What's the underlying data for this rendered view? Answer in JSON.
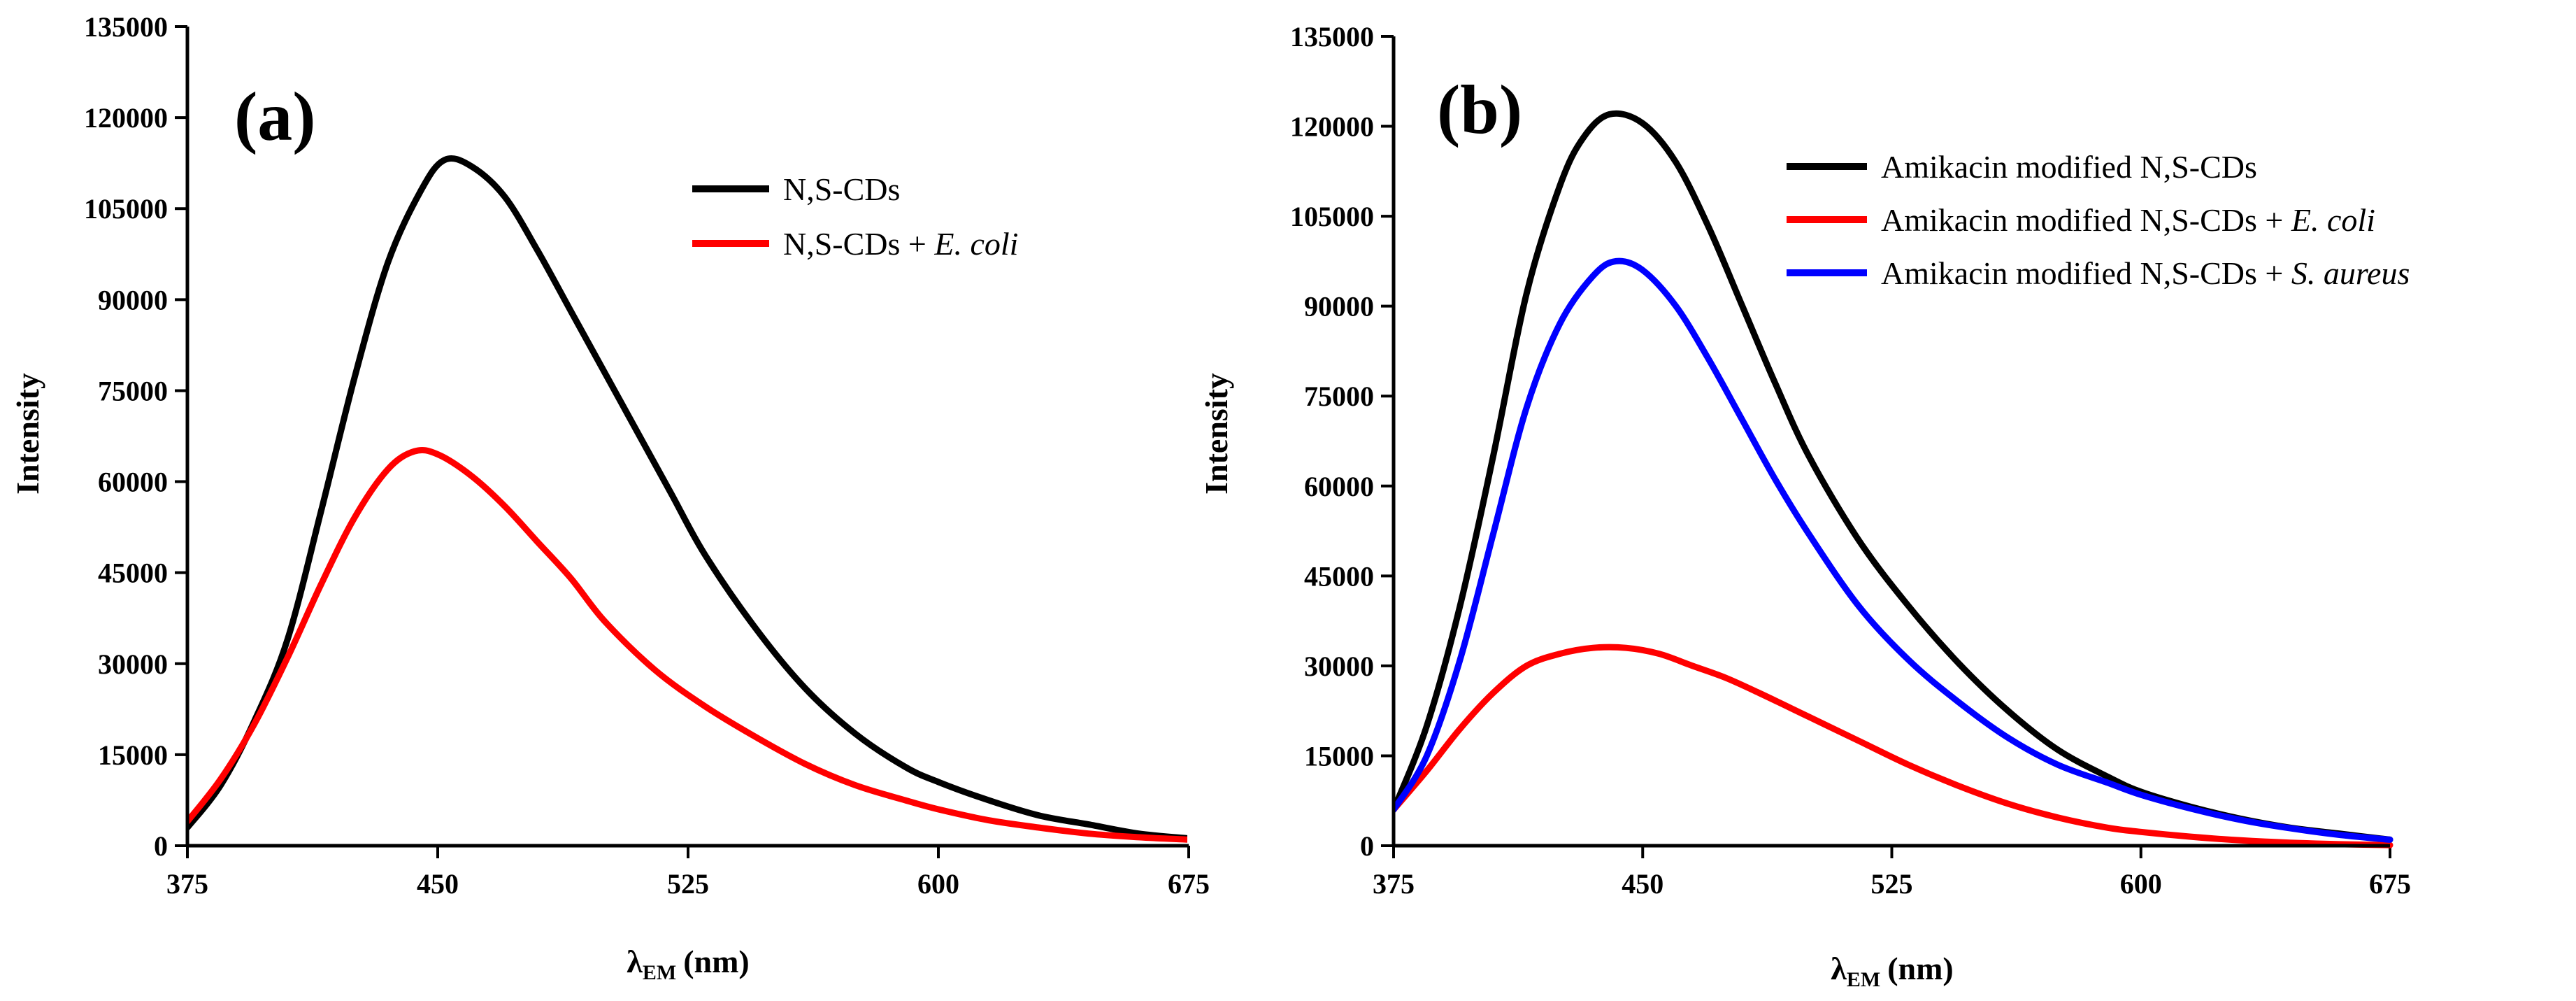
{
  "chart_data": [
    {
      "type": "line",
      "panel_label": "(a)",
      "xlabel_main": "λ",
      "xlabel_sub": "EM",
      "xlabel_unit": "(nm)",
      "ylabel": "Intensity",
      "xlim": [
        375,
        675
      ],
      "ylim": [
        0,
        135000
      ],
      "xticks": [
        375,
        450,
        525,
        600,
        675
      ],
      "yticks": [
        0,
        15000,
        30000,
        45000,
        60000,
        75000,
        90000,
        105000,
        120000,
        135000
      ],
      "legend_position": "top-right",
      "series": [
        {
          "name": "N,S-CDs",
          "name_plain": "N,S-CDs",
          "name_italic": "",
          "color": "#000000",
          "x": [
            375,
            385,
            395,
            405,
            415,
            425,
            435,
            445,
            452,
            460,
            470,
            480,
            490,
            500,
            510,
            520,
            530,
            545,
            560,
            575,
            590,
            600,
            615,
            630,
            645,
            660,
            675
          ],
          "y": [
            3000,
            10000,
            20500,
            34000,
            55000,
            77000,
            96000,
            108000,
            113000,
            112000,
            107000,
            98000,
            88000,
            78000,
            68000,
            58000,
            48000,
            36000,
            26000,
            18500,
            13000,
            10500,
            7500,
            5000,
            3500,
            2000,
            1200
          ]
        },
        {
          "name": "N,S-CDs + E. coli",
          "name_plain": "N,S-CDs + ",
          "name_italic": "E. coli",
          "color": "#ff0000",
          "x": [
            375,
            385,
            395,
            405,
            415,
            425,
            435,
            443,
            450,
            460,
            470,
            480,
            490,
            500,
            515,
            530,
            545,
            560,
            575,
            590,
            600,
            615,
            630,
            645,
            660,
            675
          ],
          "y": [
            4000,
            11000,
            20000,
            31000,
            43000,
            54000,
            62000,
            65000,
            64500,
            61000,
            56000,
            50000,
            44000,
            37000,
            29000,
            23000,
            18000,
            13500,
            10000,
            7500,
            6000,
            4200,
            3000,
            2000,
            1400,
            1000
          ]
        }
      ]
    },
    {
      "type": "line",
      "panel_label": "(b)",
      "xlabel_main": "λ",
      "xlabel_sub": "EM",
      "xlabel_unit": "(nm)",
      "ylabel": "Intensity",
      "xlim": [
        375,
        675
      ],
      "ylim": [
        0,
        135000
      ],
      "xticks": [
        375,
        450,
        525,
        600,
        675
      ],
      "yticks": [
        0,
        15000,
        30000,
        45000,
        60000,
        75000,
        90000,
        105000,
        120000,
        135000
      ],
      "legend_position": "top-right",
      "series": [
        {
          "name": "Amikacin modified N,S-CDs",
          "name_plain": "Amikacin modified N,S-CDs",
          "name_italic": "",
          "color": "#000000",
          "x": [
            375,
            385,
            395,
            405,
            415,
            425,
            432,
            440,
            450,
            460,
            470,
            480,
            490,
            500,
            515,
            530,
            545,
            560,
            575,
            590,
            600,
            615,
            630,
            645,
            660,
            675
          ],
          "y": [
            6000,
            20000,
            40000,
            65000,
            92000,
            110000,
            118000,
            122000,
            120500,
            114000,
            103000,
            90000,
            77000,
            65000,
            51000,
            40000,
            30500,
            22500,
            16000,
            11500,
            9000,
            6500,
            4500,
            3000,
            2000,
            1000
          ]
        },
        {
          "name": "Amikacin modified N,S-CDs + E. coli",
          "name_plain": "Amikacin modified N,S-CDs + ",
          "name_italic": "E. coli",
          "color": "#ff0000",
          "x": [
            375,
            385,
            395,
            405,
            415,
            425,
            435,
            445,
            455,
            465,
            475,
            485,
            500,
            515,
            530,
            545,
            560,
            575,
            590,
            600,
            615,
            630,
            645,
            660,
            675
          ],
          "y": [
            6000,
            12500,
            19500,
            25500,
            30000,
            32000,
            33000,
            33000,
            32000,
            30000,
            28000,
            25500,
            21500,
            17500,
            13500,
            10000,
            7000,
            4700,
            3000,
            2300,
            1500,
            900,
            500,
            250,
            100
          ]
        },
        {
          "name": "Amikacin modified N,S-CDs + S. aureus",
          "name_plain": "Amikacin modified N,S-CDs + ",
          "name_italic": "S. aureus",
          "color": "#0000ff",
          "x": [
            375,
            385,
            395,
            405,
            415,
            425,
            435,
            442,
            450,
            460,
            470,
            480,
            490,
            500,
            515,
            530,
            545,
            560,
            575,
            590,
            600,
            615,
            630,
            645,
            660,
            675
          ],
          "y": [
            6000,
            15000,
            31000,
            52000,
            73000,
            87000,
            95000,
            97500,
            96000,
            90000,
            81000,
            71000,
            61000,
            52000,
            40000,
            31000,
            24000,
            18000,
            13500,
            10500,
            8500,
            6200,
            4300,
            2900,
            1800,
            1000
          ]
        }
      ]
    }
  ]
}
